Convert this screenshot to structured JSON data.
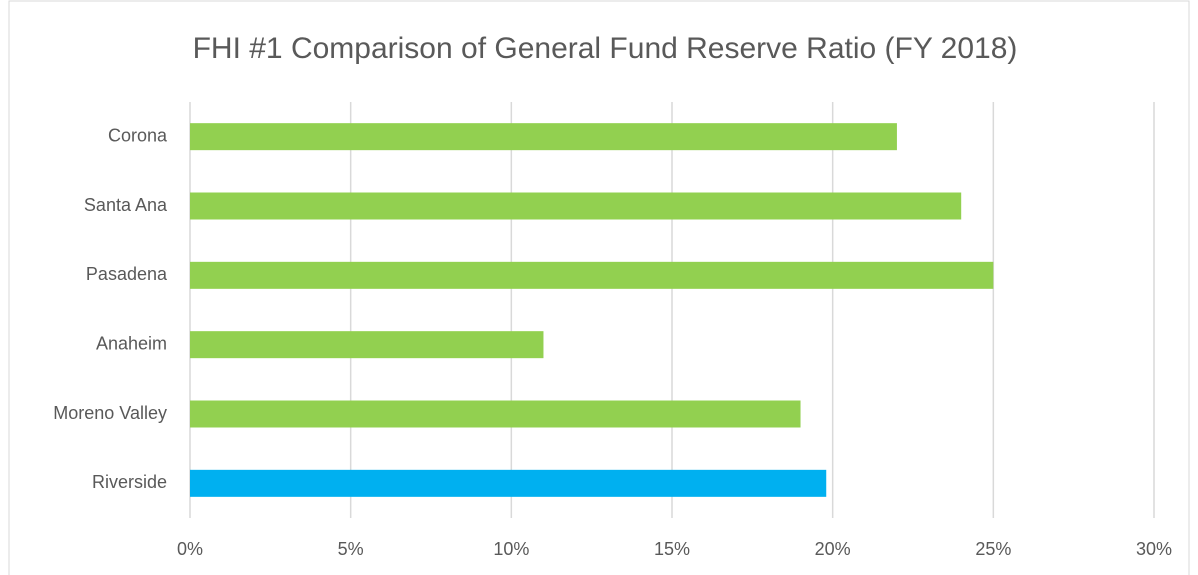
{
  "chart_data": {
    "type": "bar",
    "orientation": "horizontal",
    "title": "FHI #1 Comparison of General Fund Reserve Ratio (FY 2018)",
    "categories": [
      "Corona",
      "Santa Ana",
      "Pasadena",
      "Anaheim",
      "Moreno Valley",
      "Riverside"
    ],
    "values": [
      22,
      24,
      25,
      11,
      19,
      19.8
    ],
    "colors": [
      "#92d050",
      "#92d050",
      "#92d050",
      "#92d050",
      "#92d050",
      "#00b0f0"
    ],
    "xlim": [
      0,
      30
    ],
    "xticks": [
      {
        "value": 0,
        "label": "0%"
      },
      {
        "value": 5,
        "label": "5%"
      },
      {
        "value": 10,
        "label": "10%"
      },
      {
        "value": 15,
        "label": "15%"
      },
      {
        "value": 20,
        "label": "20%"
      },
      {
        "value": 25,
        "label": "25%"
      },
      {
        "value": 30,
        "label": "30%"
      }
    ],
    "grid": true
  }
}
